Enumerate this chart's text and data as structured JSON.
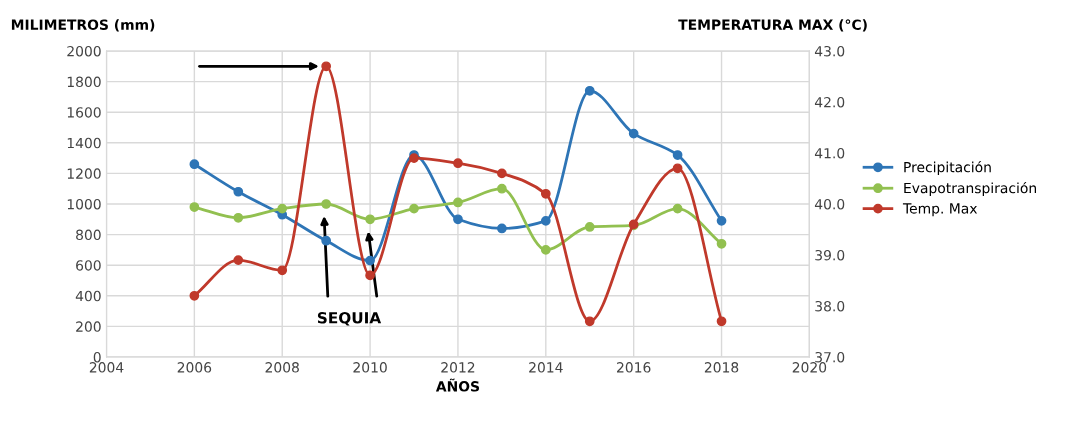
{
  "chart_data": {
    "type": "line",
    "xlabel": "AÑOS",
    "ylabel": "MILIMETROS (mm)",
    "y2label": "TEMPERATURA MAX (°C)",
    "x": [
      2006,
      2007,
      2008,
      2009,
      2010,
      2011,
      2012,
      2013,
      2014,
      2015,
      2016,
      2017,
      2018
    ],
    "series": [
      {
        "name": "Precipitación",
        "color": "#2e75b6",
        "values": [
          1260,
          1080,
          930,
          760,
          630,
          1320,
          900,
          840,
          890,
          1740,
          1460,
          1320,
          890
        ]
      },
      {
        "name": "Evapotranspiración",
        "color": "#92c050",
        "values": [
          980,
          910,
          970,
          1000,
          900,
          970,
          1010,
          1100,
          700,
          850,
          860,
          970,
          740
        ]
      },
      {
        "name": "Temp. Max",
        "color": "#c0392b",
        "axis": "y2",
        "values": [
          38.2,
          38.9,
          38.7,
          42.7,
          38.6,
          40.9,
          40.8,
          40.6,
          40.2,
          37.7,
          39.6,
          40.7,
          37.7
        ]
      }
    ],
    "xlim": [
      2004,
      2020
    ],
    "xticks": [
      2004,
      2006,
      2008,
      2010,
      2012,
      2014,
      2016,
      2018,
      2020
    ],
    "ylim": [
      0,
      2000
    ],
    "yticks": [
      0,
      200,
      400,
      600,
      800,
      1000,
      1200,
      1400,
      1600,
      1800,
      2000
    ],
    "y2lim": [
      37,
      43
    ],
    "y2ticks": [
      {
        "value": 37,
        "label": "37.0"
      },
      {
        "value": 38,
        "label": "38.0"
      },
      {
        "value": 39,
        "label": "39.0"
      },
      {
        "value": 40,
        "label": "40.0"
      },
      {
        "value": 41,
        "label": "41.0"
      },
      {
        "value": 42,
        "label": "42.0"
      },
      {
        "value": 43,
        "label": "43.0"
      }
    ],
    "annotations": [
      "SEQUIA"
    ],
    "grid": true,
    "legend": "right",
    "marker": "circle",
    "line_style": "solid"
  }
}
